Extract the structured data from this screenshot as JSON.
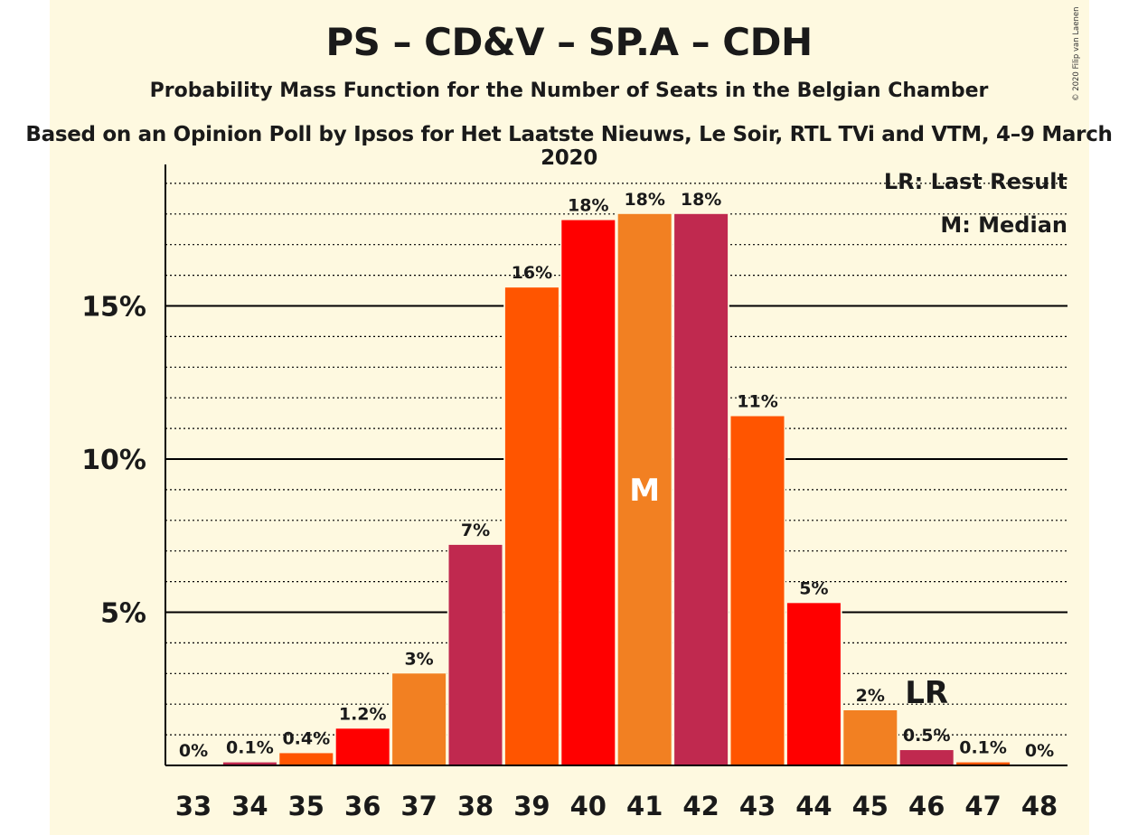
{
  "title": "PS – CD&V – SP.A – CDH",
  "subtitle": "Probability Mass Function for the Number of Seats in the Belgian Chamber",
  "source": "Based on an Opinion Poll by Ipsos for Het Laatste Nieuws, Le Soir, RTL TVi and VTM, 4–9 March 2020",
  "copyright": "© 2020 Filip van Laenen",
  "colors": {
    "background": "#fef9e0",
    "ps_red": "#ff0000",
    "cdv_orange": "#f28022",
    "spa_red": "#c0294f",
    "cdh_orange": "#ff5500",
    "axis": "#000000"
  },
  "legend": {
    "last_result": "LR: Last Result",
    "median": "M: Median"
  },
  "chart_data": {
    "type": "bar",
    "title": "PS – CD&V – SP.A – CDH",
    "xlabel": "",
    "ylabel": "",
    "categories": [
      "33",
      "34",
      "35",
      "36",
      "37",
      "38",
      "39",
      "40",
      "41",
      "42",
      "43",
      "44",
      "45",
      "46",
      "47",
      "48"
    ],
    "values": [
      0,
      0.1,
      0.4,
      1.2,
      3.0,
      7.2,
      15.6,
      17.8,
      18.0,
      18.0,
      11.4,
      5.3,
      1.8,
      0.5,
      0.1,
      0
    ],
    "value_labels": [
      "0%",
      "0.1%",
      "0.4%",
      "1.2%",
      "3%",
      "7%",
      "16%",
      "18%",
      "18%",
      "18%",
      "11%",
      "5%",
      "2%",
      "0.5%",
      "0.1%",
      "0%"
    ],
    "bar_colors": [
      "#c0294f",
      "#c0294f",
      "#ff5500",
      "#ff0000",
      "#f28022",
      "#c0294f",
      "#ff5500",
      "#ff0000",
      "#f28022",
      "#c0294f",
      "#ff5500",
      "#ff0000",
      "#f28022",
      "#c0294f",
      "#ff5500",
      "#ff0000"
    ],
    "ylim": [
      0,
      19.5
    ],
    "y_ticks": [
      5,
      10,
      15
    ],
    "y_tick_labels": [
      "5%",
      "10%",
      "15%"
    ],
    "minor_gridline_step": 1,
    "median_seat": "41",
    "median_marker": "M",
    "last_result_seat": "46",
    "last_result_marker": "LR",
    "legend_position": "top-right"
  }
}
